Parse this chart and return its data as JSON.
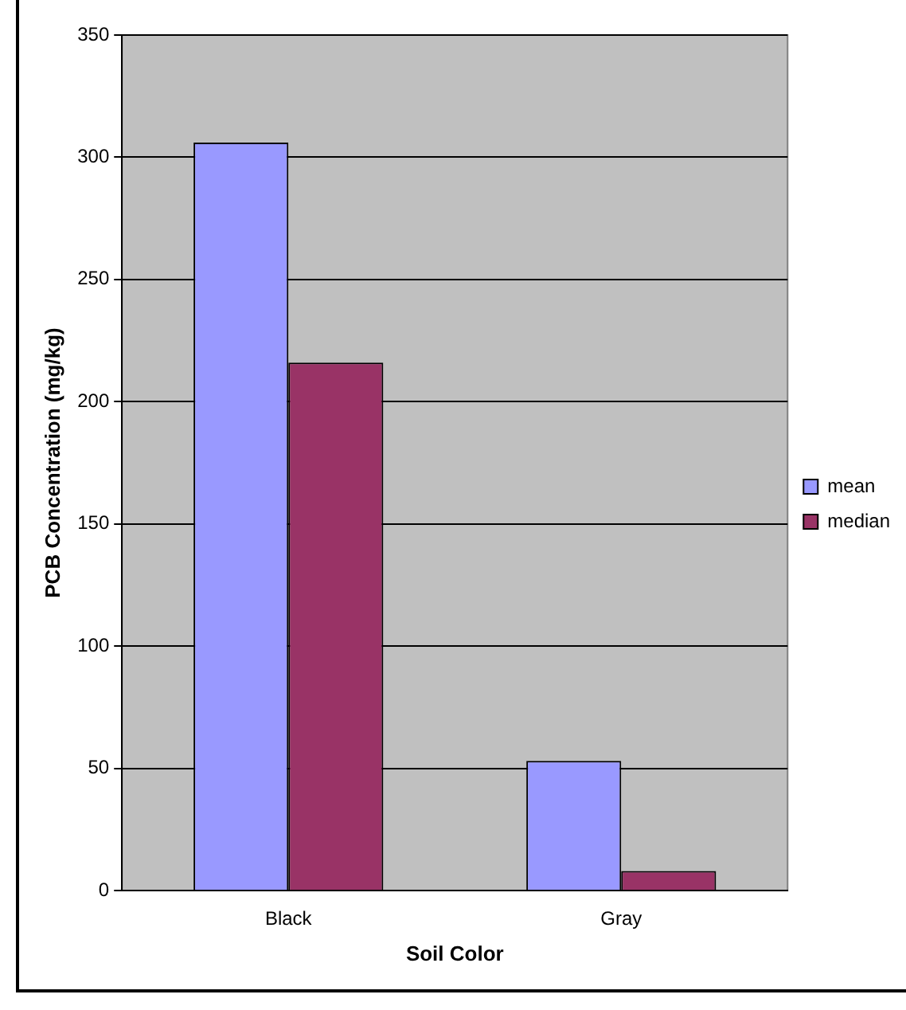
{
  "chart_data": {
    "type": "bar",
    "xlabel": "Soil Color",
    "ylabel": "PCB Concentration (mg/kg)",
    "categories": [
      "Black",
      "Gray"
    ],
    "series": [
      {
        "name": "mean",
        "color": "#9999ff",
        "values": [
          306,
          53
        ]
      },
      {
        "name": "median",
        "color": "#993366",
        "values": [
          216,
          8
        ]
      }
    ],
    "ylim": [
      0,
      350
    ],
    "yticks": [
      0,
      50,
      100,
      150,
      200,
      250,
      300,
      350
    ],
    "grid": "y",
    "legend": "right"
  }
}
